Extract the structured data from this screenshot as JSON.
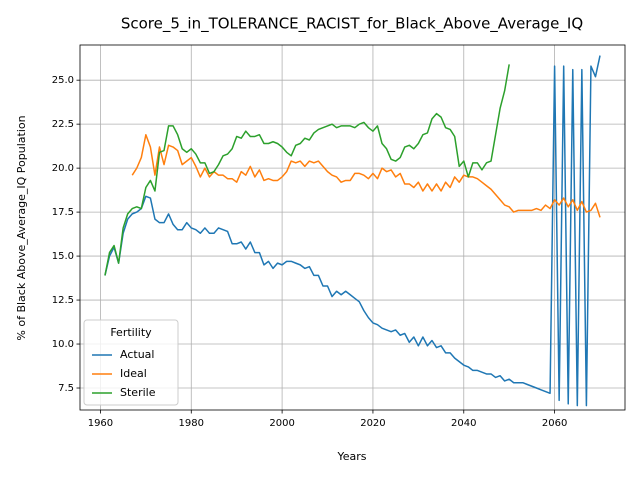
{
  "chart_data": {
    "type": "line",
    "title": "Score_5_in_TOLERANCE_RACIST_for_Black_Above_Average_IQ",
    "xlabel": "Years",
    "ylabel": "% of Black Above_Average_IQ Population",
    "legend_title": "Fertility",
    "legend": "lower left",
    "grid": true,
    "xlim": [
      1955.5,
      2075.5
    ],
    "ylim": [
      6.25,
      27.0
    ],
    "xticks": [
      1960,
      1980,
      2000,
      2020,
      2040,
      2060
    ],
    "yticks": [
      7.5,
      {
        "value": 10,
        "label": "10.0"
      },
      12.5,
      {
        "value": 15,
        "label": "15.0"
      },
      17.5,
      {
        "value": 20,
        "label": "20.0"
      },
      22.5,
      {
        "value": 25,
        "label": "25.0"
      }
    ],
    "x": [
      1961,
      1962,
      1963,
      1964,
      1965,
      1966,
      1967,
      1968,
      1969,
      1970,
      1971,
      1972,
      1973,
      1974,
      1975,
      1976,
      1977,
      1978,
      1979,
      1980,
      1981,
      1982,
      1983,
      1984,
      1985,
      1986,
      1987,
      1988,
      1989,
      1990,
      1991,
      1992,
      1993,
      1994,
      1995,
      1996,
      1997,
      1998,
      1999,
      2000,
      2001,
      2002,
      2003,
      2004,
      2005,
      2006,
      2007,
      2008,
      2009,
      2010,
      2011,
      2012,
      2013,
      2014,
      2015,
      2016,
      2017,
      2018,
      2019,
      2020,
      2021,
      2022,
      2023,
      2024,
      2025,
      2026,
      2027,
      2028,
      2029,
      2030,
      2031,
      2032,
      2033,
      2034,
      2035,
      2036,
      2037,
      2038,
      2039,
      2040,
      2041,
      2042,
      2043,
      2044,
      2045,
      2046,
      2047,
      2048,
      2049,
      2050,
      2051,
      2052,
      2053,
      2054,
      2055,
      2056,
      2057,
      2058,
      2059,
      2060,
      2061,
      2062,
      2063,
      2064,
      2065,
      2066,
      2067,
      2068,
      2069,
      2070
    ],
    "series": [
      {
        "name": "Actual",
        "color": "#1f77b4",
        "values": [
          13.9,
          15.0,
          15.5,
          14.6,
          16.3,
          17.1,
          17.4,
          17.5,
          17.7,
          18.4,
          18.3,
          17.1,
          16.9,
          16.9,
          17.4,
          16.8,
          16.5,
          16.5,
          16.9,
          16.6,
          16.5,
          16.3,
          16.6,
          16.3,
          16.3,
          16.6,
          16.5,
          16.4,
          15.7,
          15.7,
          15.8,
          15.4,
          15.8,
          15.2,
          15.2,
          14.5,
          14.7,
          14.3,
          14.6,
          14.5,
          14.7,
          14.7,
          14.6,
          14.5,
          14.3,
          14.4,
          13.9,
          13.9,
          13.3,
          13.3,
          12.7,
          13.0,
          12.8,
          13.0,
          12.8,
          12.6,
          12.4,
          11.9,
          11.5,
          11.2,
          11.1,
          10.9,
          10.8,
          10.7,
          10.8,
          10.5,
          10.6,
          10.1,
          10.4,
          9.9,
          10.4,
          9.9,
          10.2,
          9.8,
          9.9,
          9.5,
          9.5,
          9.2,
          9.0,
          8.8,
          8.7,
          8.5,
          8.5,
          8.4,
          8.3,
          8.3,
          8.1,
          8.2,
          7.9,
          8.0,
          7.8,
          7.8,
          7.8,
          7.7,
          7.6,
          7.5,
          7.4,
          7.3,
          7.2,
          25.8,
          6.8,
          25.8,
          6.6,
          25.6,
          6.5,
          25.6,
          6.5,
          25.8,
          25.2,
          26.4
        ]
      },
      {
        "name": "Ideal",
        "color": "#ff7f0e",
        "values": [
          null,
          null,
          null,
          null,
          null,
          null,
          19.6,
          20.0,
          20.6,
          21.9,
          21.2,
          19.6,
          21.2,
          20.2,
          21.3,
          21.2,
          21.0,
          20.2,
          20.4,
          20.6,
          20.1,
          19.5,
          20.0,
          19.5,
          19.8,
          19.6,
          19.6,
          19.4,
          19.4,
          19.2,
          19.8,
          19.6,
          20.1,
          19.5,
          19.9,
          19.3,
          19.4,
          19.3,
          19.3,
          19.5,
          19.8,
          20.4,
          20.3,
          20.4,
          20.1,
          20.4,
          20.3,
          20.4,
          20.1,
          19.8,
          19.6,
          19.5,
          19.2,
          19.3,
          19.3,
          19.7,
          19.7,
          19.6,
          19.4,
          19.7,
          19.4,
          20.0,
          19.8,
          19.9,
          19.5,
          19.7,
          19.1,
          19.1,
          18.9,
          19.2,
          18.7,
          19.1,
          18.7,
          19.1,
          18.7,
          19.2,
          18.9,
          19.5,
          19.2,
          19.6,
          19.5,
          19.5,
          19.4,
          19.2,
          19.0,
          18.8,
          18.5,
          18.2,
          17.9,
          17.8,
          17.5,
          17.6,
          17.6,
          17.6,
          17.6,
          17.7,
          17.6,
          17.9,
          17.7,
          18.2,
          17.9,
          18.3,
          17.8,
          18.2,
          17.6,
          18.1,
          17.5,
          17.6,
          18.0,
          17.2
        ]
      },
      {
        "name": "Sterile",
        "color": "#2ca02c",
        "values": [
          13.9,
          15.2,
          15.6,
          14.6,
          16.6,
          17.4,
          17.7,
          17.8,
          17.7,
          18.9,
          19.3,
          18.7,
          20.9,
          21.0,
          22.4,
          22.4,
          21.9,
          21.1,
          20.9,
          21.1,
          20.8,
          20.3,
          20.3,
          19.7,
          19.8,
          20.2,
          20.7,
          20.8,
          21.1,
          21.8,
          21.7,
          22.1,
          21.8,
          21.8,
          21.9,
          21.4,
          21.4,
          21.5,
          21.4,
          21.2,
          20.9,
          20.7,
          21.3,
          21.4,
          21.7,
          21.6,
          22.0,
          22.2,
          22.3,
          22.4,
          22.5,
          22.3,
          22.4,
          22.4,
          22.4,
          22.3,
          22.5,
          22.6,
          22.3,
          22.1,
          22.4,
          21.4,
          21.1,
          20.5,
          20.4,
          20.6,
          21.2,
          21.3,
          21.1,
          21.4,
          21.9,
          22.0,
          22.8,
          23.1,
          22.9,
          22.3,
          22.2,
          21.8,
          20.1,
          20.4,
          19.5,
          20.3,
          20.3,
          19.9,
          20.3,
          20.4,
          21.9,
          23.4,
          24.4,
          25.9,
          null,
          null,
          null,
          null,
          null,
          null,
          null,
          null,
          null,
          null,
          null,
          null,
          null,
          null,
          null,
          null,
          null,
          null,
          null,
          null
        ]
      }
    ]
  }
}
